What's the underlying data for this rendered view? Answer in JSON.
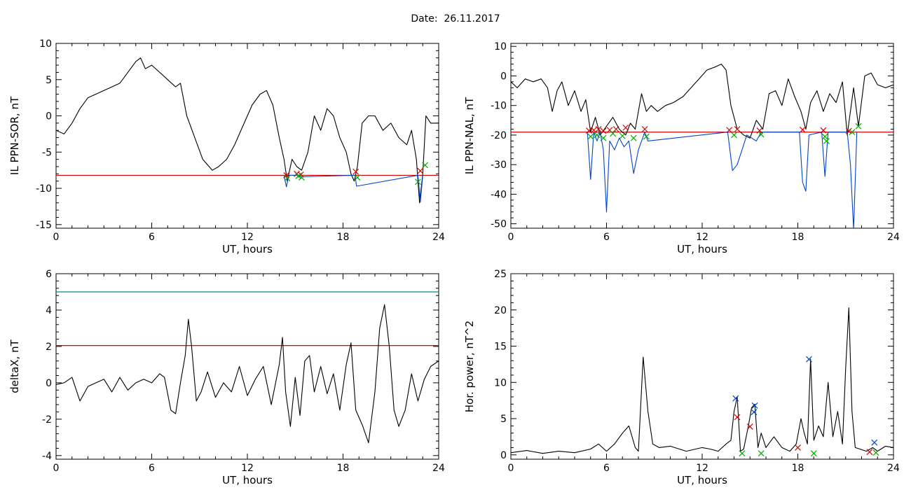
{
  "header": {
    "date_label": "Date:",
    "date_value": "26.11.2017"
  },
  "chart_data": [
    {
      "type": "line",
      "ylabel": "IL PPN-SOR, nT",
      "xlabel": "UT, hours",
      "xlim": [
        0,
        24
      ],
      "ylim": [
        -15.5,
        10
      ],
      "xticks": [
        0,
        6,
        12,
        18,
        24
      ],
      "yticks": [
        10,
        5,
        0,
        -5,
        -10,
        -15
      ],
      "hlines": [
        {
          "y": -8.2,
          "color": "#d40000"
        }
      ],
      "series": [
        {
          "color": "#000000",
          "x": [
            0,
            0.5,
            1,
            1.5,
            2,
            2.5,
            3,
            3.5,
            4,
            4.5,
            5,
            5.3,
            5.6,
            6,
            6.5,
            7,
            7.5,
            7.8,
            8.2,
            8.7,
            9.2,
            9.8,
            10.2,
            10.7,
            11.2,
            11.8,
            12.3,
            12.8,
            13.2,
            13.6,
            14,
            14.3,
            14.5,
            14.8,
            15.1,
            15.4,
            15.8,
            16.2,
            16.6,
            17,
            17.4,
            17.8,
            18.2,
            18.5,
            18.7,
            18.9,
            19.2,
            19.6,
            20,
            20.5,
            21,
            21.5,
            22,
            22.3,
            22.6,
            22.8,
            23,
            23.2,
            23.5,
            24
          ],
          "y": [
            -2,
            -2.5,
            -1,
            1,
            2.5,
            3,
            3.5,
            4,
            4.5,
            6,
            7.5,
            8,
            6.5,
            7,
            6,
            5,
            4,
            4.5,
            0,
            -3,
            -6,
            -7.5,
            -7,
            -6,
            -4,
            -1,
            1.5,
            3,
            3.5,
            1.5,
            -3,
            -6,
            -9,
            -6,
            -7,
            -7.5,
            -5,
            0,
            -2,
            1,
            0,
            -3,
            -5,
            -8,
            -9,
            -7,
            -1,
            0,
            0,
            -2,
            -1,
            -3,
            -4,
            -2,
            -6,
            -12,
            -8,
            0,
            -1,
            -1
          ]
        },
        {
          "color": "#0044cc",
          "x": [
            14.3,
            14.45,
            14.6,
            15.1,
            15.3,
            18.75,
            18.85,
            22.7,
            22.85,
            23.0
          ],
          "y": [
            -8.2,
            -9.8,
            -8.2,
            -8.2,
            -8.4,
            -8.2,
            -9.7,
            -8.2,
            -11.9,
            -8.2
          ]
        }
      ],
      "markers": [
        {
          "color": "#d40000",
          "points": [
            [
              14.45,
              -8.2
            ],
            [
              15.1,
              -8.0
            ],
            [
              15.35,
              -8.1
            ],
            [
              18.8,
              -7.7
            ],
            [
              22.85,
              -7.6
            ]
          ]
        },
        {
          "color": "#00aa00",
          "points": [
            [
              14.5,
              -8.6
            ],
            [
              15.2,
              -8.3
            ],
            [
              15.4,
              -8.5
            ],
            [
              18.9,
              -8.5
            ],
            [
              22.7,
              -9.1
            ],
            [
              23.15,
              -6.8
            ]
          ]
        }
      ]
    },
    {
      "type": "line",
      "ylabel": "IL PPN-NAL, nT",
      "xlabel": "UT, hours",
      "xlim": [
        0,
        24
      ],
      "ylim": [
        -51.5,
        11
      ],
      "xticks": [
        0,
        6,
        12,
        18,
        24
      ],
      "yticks": [
        10,
        0,
        -10,
        -20,
        -30,
        -40,
        -50
      ],
      "hlines": [
        {
          "y": -19,
          "color": "#d40000"
        }
      ],
      "series": [
        {
          "color": "#000000",
          "x": [
            0,
            0.4,
            0.9,
            1.4,
            1.9,
            2.3,
            2.6,
            2.9,
            3.2,
            3.6,
            4.0,
            4.4,
            4.7,
            5.0,
            5.3,
            5.6,
            6.0,
            6.4,
            6.8,
            7.2,
            7.5,
            7.8,
            8.2,
            8.5,
            8.8,
            9.2,
            9.7,
            10.2,
            10.8,
            11.3,
            11.8,
            12.3,
            12.8,
            13.2,
            13.5,
            13.8,
            14.2,
            14.6,
            15.0,
            15.4,
            15.8,
            16.2,
            16.6,
            17.0,
            17.4,
            17.8,
            18.2,
            18.5,
            18.8,
            19.2,
            19.6,
            20.0,
            20.4,
            20.8,
            21.1,
            21.5,
            21.8,
            22.2,
            22.6,
            23.0,
            23.5,
            24
          ],
          "y": [
            -2,
            -4,
            -1,
            -2,
            -1,
            -4,
            -12,
            -5,
            -2,
            -10,
            -5,
            -12,
            -8,
            -19,
            -14,
            -20,
            -17,
            -14,
            -18,
            -20,
            -16,
            -18,
            -6,
            -12,
            -10,
            -12,
            -10,
            -9,
            -7,
            -4,
            -1,
            2,
            3,
            4,
            2,
            -10,
            -18,
            -20,
            -21,
            -15,
            -18,
            -6,
            -5,
            -10,
            -1,
            -7,
            -12,
            -18,
            -9,
            -5,
            -12,
            -6,
            -9,
            -2,
            -20,
            -4,
            -17,
            0,
            1,
            -3,
            -4,
            -3
          ]
        },
        {
          "color": "#0044cc",
          "x": [
            4.8,
            5.0,
            5.2,
            5.4,
            5.6,
            5.8,
            6.0,
            6.2,
            6.5,
            6.8,
            7.1,
            7.4,
            7.7,
            8.0,
            8.4,
            8.6,
            13.6,
            13.9,
            14.2,
            14.5,
            14.8,
            15.1,
            15.4,
            15.7,
            18.1,
            18.3,
            18.5,
            18.7,
            19.5,
            19.7,
            19.9,
            21.1,
            21.3,
            21.5,
            21.7
          ],
          "y": [
            -19,
            -35,
            -19,
            -22,
            -19,
            -25,
            -46,
            -22,
            -25,
            -21,
            -24,
            -22,
            -33,
            -25,
            -19,
            -22,
            -19,
            -32,
            -30,
            -25,
            -20,
            -21,
            -22,
            -19,
            -19,
            -36,
            -39,
            -20,
            -19,
            -34,
            -19,
            -19,
            -30,
            -52,
            -19
          ]
        }
      ],
      "markers": [
        {
          "color": "#d40000",
          "points": [
            [
              4.9,
              -18.5
            ],
            [
              5.2,
              -18.3
            ],
            [
              5.5,
              -18.0
            ],
            [
              5.8,
              -18.6
            ],
            [
              6.2,
              -18.3
            ],
            [
              6.6,
              -18.0
            ],
            [
              7.2,
              -17.5
            ],
            [
              8.4,
              -18.0
            ],
            [
              13.7,
              -18.3
            ],
            [
              14.2,
              -18.0
            ],
            [
              15.6,
              -18.5
            ],
            [
              18.3,
              -18.2
            ],
            [
              19.6,
              -18.4
            ],
            [
              21.2,
              -18.6
            ]
          ]
        },
        {
          "color": "#00aa00",
          "points": [
            [
              5.0,
              -20.5
            ],
            [
              5.4,
              -20.0
            ],
            [
              5.8,
              -21.0
            ],
            [
              6.4,
              -19.5
            ],
            [
              7.0,
              -20.3
            ],
            [
              7.7,
              -21.0
            ],
            [
              8.5,
              -20.5
            ],
            [
              14.0,
              -20.0
            ],
            [
              15.7,
              -19.8
            ],
            [
              19.7,
              -20.5
            ],
            [
              19.8,
              -22.0
            ],
            [
              21.4,
              -19.0
            ],
            [
              21.8,
              -17.0
            ]
          ]
        }
      ]
    },
    {
      "type": "line",
      "ylabel": "deltaX, nT",
      "xlabel": "UT, hours",
      "xlim": [
        0,
        24
      ],
      "ylim": [
        -4.2,
        6
      ],
      "xticks": [
        0,
        6,
        12,
        18,
        24
      ],
      "yticks": [
        6,
        4,
        2,
        0,
        -2,
        -4
      ],
      "hlines": [
        {
          "y": 5,
          "color": "#008b8b"
        },
        {
          "y": 2.05,
          "color": "#d40000"
        }
      ],
      "series": [
        {
          "color": "#000000",
          "x": [
            0,
            0.5,
            1,
            1.5,
            2,
            2.5,
            3,
            3.5,
            4,
            4.5,
            5,
            5.5,
            6,
            6.5,
            6.8,
            7.2,
            7.5,
            7.8,
            8.1,
            8.3,
            8.5,
            8.8,
            9.1,
            9.5,
            10,
            10.5,
            11,
            11.5,
            12,
            12.5,
            13,
            13.5,
            14,
            14.2,
            14.4,
            14.7,
            15,
            15.3,
            15.6,
            15.9,
            16.2,
            16.6,
            17,
            17.4,
            17.8,
            18.2,
            18.5,
            18.8,
            19.2,
            19.6,
            20,
            20.3,
            20.6,
            20.9,
            21.2,
            21.5,
            21.9,
            22.3,
            22.7,
            23.1,
            23.5,
            24
          ],
          "y": [
            -0.1,
            0,
            0.3,
            -1,
            -0.2,
            0,
            0.2,
            -0.5,
            0.3,
            -0.4,
            0,
            0.2,
            0,
            0.5,
            0.3,
            -1.5,
            -1.7,
            0,
            1.5,
            3.5,
            2,
            -1,
            -0.5,
            0.6,
            -0.8,
            0,
            -0.5,
            0.9,
            -0.7,
            0.2,
            0.9,
            -1.2,
            1,
            2.5,
            -0.5,
            -2.4,
            0.3,
            -1.8,
            1.2,
            1.5,
            -0.5,
            0.9,
            -0.6,
            0.5,
            -1.5,
            1,
            2.2,
            -1.5,
            -2.3,
            -3.3,
            -0.5,
            3,
            4.3,
            2,
            -1.5,
            -2.4,
            -1.5,
            0.5,
            -1,
            0.2,
            0.9,
            1.2
          ]
        }
      ],
      "markers": []
    },
    {
      "type": "line",
      "ylabel": "Hor. power, nT^2",
      "xlabel": "UT, hours",
      "xlim": [
        0,
        24
      ],
      "ylim": [
        -0.6,
        25
      ],
      "xticks": [
        0,
        6,
        12,
        18,
        24
      ],
      "yticks": [
        25,
        20,
        15,
        10,
        5,
        0
      ],
      "hlines": [
        {
          "y": 25,
          "color": "#d40000"
        }
      ],
      "series": [
        {
          "color": "#000000",
          "x": [
            0,
            1,
            2,
            3,
            4,
            5,
            5.5,
            6,
            6.5,
            7,
            7.4,
            7.8,
            8.0,
            8.3,
            8.6,
            8.9,
            9.3,
            10,
            11,
            12,
            12.5,
            13,
            13.5,
            13.8,
            14.0,
            14.2,
            14.4,
            14.6,
            14.9,
            15.1,
            15.3,
            15.5,
            15.7,
            16,
            16.5,
            17,
            17.5,
            17.9,
            18.2,
            18.4,
            18.6,
            18.8,
            19.0,
            19.3,
            19.6,
            19.9,
            20.2,
            20.5,
            20.8,
            21.0,
            21.2,
            21.4,
            21.6,
            21.9,
            22.3,
            22.7,
            23,
            23.5,
            24
          ],
          "y": [
            0.3,
            0.6,
            0.2,
            0.5,
            0.3,
            0.8,
            1.5,
            0.5,
            1.5,
            3,
            4,
            1,
            0.5,
            13.5,
            6,
            1.5,
            1,
            1.2,
            0.5,
            1,
            0.8,
            0.5,
            1.5,
            2,
            6,
            8,
            0.5,
            0.8,
            4,
            6.5,
            7,
            1,
            3,
            1,
            2.5,
            1,
            0.5,
            1.5,
            5,
            3,
            1.5,
            13.2,
            2,
            4,
            2.5,
            10,
            2.5,
            6,
            1.5,
            12,
            20.3,
            6,
            1,
            0.8,
            0.5,
            1,
            0.5,
            1.2,
            1
          ]
        }
      ],
      "markers": [
        {
          "color": "#d40000",
          "points": [
            [
              14.2,
              5.2
            ],
            [
              15.0,
              3.9
            ],
            [
              18.0,
              1.0
            ],
            [
              22.5,
              0.4
            ]
          ]
        },
        {
          "color": "#0044cc",
          "points": [
            [
              14.1,
              7.8
            ],
            [
              15.3,
              6.8
            ],
            [
              15.25,
              5.9
            ],
            [
              18.7,
              13.2
            ],
            [
              22.8,
              1.7
            ]
          ]
        },
        {
          "color": "#00aa00",
          "points": [
            [
              14.5,
              0.2
            ],
            [
              15.7,
              0.2
            ],
            [
              19.0,
              0.2
            ],
            [
              22.9,
              0.3
            ]
          ]
        }
      ]
    }
  ]
}
